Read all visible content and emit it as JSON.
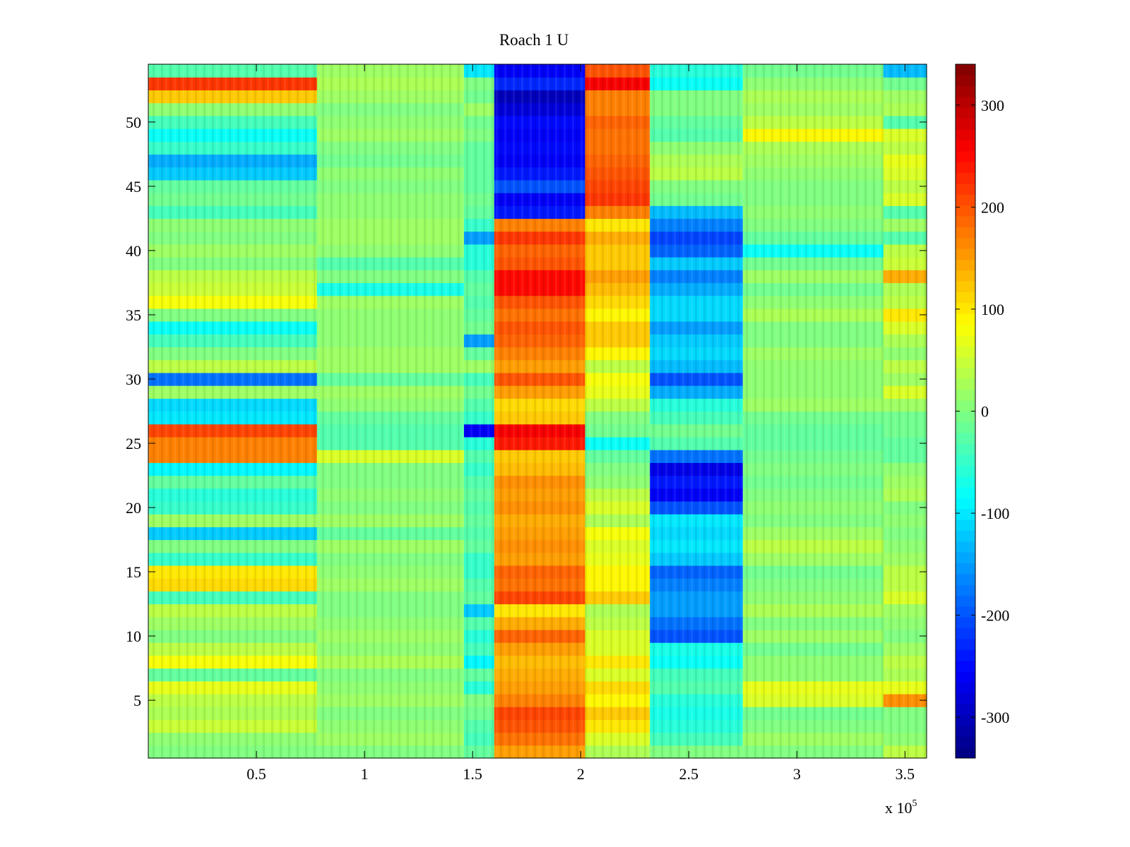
{
  "chart_data": {
    "type": "heatmap",
    "title": "Roach 1 U",
    "xlabel": "",
    "ylabel": "",
    "x_exponent_label": "x 10",
    "x_exponent_power": "5",
    "xlim": [
      0,
      360000
    ],
    "ylim": [
      0.5,
      54.5
    ],
    "x_ticks": [
      0.5,
      1,
      1.5,
      2,
      2.5,
      3,
      3.5
    ],
    "x_tick_labels": [
      "0.5",
      "1",
      "1.5",
      "2",
      "2.5",
      "3",
      "3.5"
    ],
    "y_ticks": [
      5,
      10,
      15,
      20,
      25,
      30,
      35,
      40,
      45,
      50
    ],
    "y_tick_labels": [
      "5",
      "10",
      "15",
      "20",
      "25",
      "30",
      "35",
      "40",
      "45",
      "50"
    ],
    "colormap": "jet",
    "clim": [
      -340,
      340
    ],
    "colorbar_ticks": [
      300,
      200,
      100,
      0,
      -100,
      -200,
      -300
    ],
    "colorbar_tick_labels": [
      "300",
      "200",
      "100",
      "0",
      "-100",
      "-200",
      "-300"
    ],
    "rows": 54,
    "segments_x_1e5": [
      0,
      0.78,
      1.46,
      1.6,
      2.02,
      2.32,
      2.75,
      3.4,
      3.6
    ],
    "grid_values": [
      [
        0,
        0,
        -20,
        150,
        30,
        0,
        0,
        40
      ],
      [
        10,
        20,
        -40,
        180,
        60,
        -40,
        20,
        10
      ],
      [
        50,
        10,
        -30,
        200,
        100,
        -60,
        0,
        0
      ],
      [
        30,
        0,
        -10,
        210,
        120,
        -70,
        -10,
        0
      ],
      [
        40,
        20,
        0,
        170,
        90,
        -60,
        60,
        160
      ],
      [
        70,
        10,
        -60,
        150,
        110,
        -30,
        70,
        70
      ],
      [
        -20,
        0,
        -20,
        140,
        60,
        -40,
        10,
        30
      ],
      [
        80,
        30,
        -90,
        130,
        100,
        -80,
        10,
        40
      ],
      [
        40,
        10,
        -40,
        150,
        60,
        -70,
        -10,
        20
      ],
      [
        0,
        20,
        -60,
        190,
        60,
        -200,
        20,
        0
      ],
      [
        20,
        10,
        -30,
        140,
        40,
        -180,
        0,
        10
      ],
      [
        40,
        0,
        -120,
        100,
        30,
        -150,
        30,
        20
      ],
      [
        -40,
        0,
        -20,
        210,
        120,
        -150,
        10,
        60
      ],
      [
        110,
        20,
        -30,
        180,
        90,
        -170,
        0,
        40
      ],
      [
        100,
        10,
        -50,
        190,
        90,
        -190,
        -10,
        40
      ],
      [
        -50,
        0,
        -50,
        150,
        70,
        -120,
        20,
        20
      ],
      [
        0,
        20,
        -20,
        160,
        60,
        -100,
        40,
        10
      ],
      [
        -120,
        -20,
        -30,
        150,
        80,
        -110,
        20,
        0
      ],
      [
        20,
        20,
        -20,
        140,
        30,
        -100,
        0,
        10
      ],
      [
        -50,
        0,
        -30,
        160,
        60,
        -200,
        10,
        0
      ],
      [
        -60,
        10,
        -20,
        150,
        40,
        -260,
        0,
        30
      ],
      [
        -20,
        0,
        -30,
        160,
        10,
        -240,
        -10,
        20
      ],
      [
        -90,
        0,
        -50,
        130,
        0,
        -270,
        0,
        10
      ],
      [
        170,
        60,
        -30,
        120,
        -20,
        -180,
        -10,
        -20
      ],
      [
        170,
        -30,
        -60,
        240,
        -80,
        -30,
        -20,
        -20
      ],
      [
        210,
        -30,
        -260,
        260,
        -10,
        -10,
        -20,
        -10
      ],
      [
        -100,
        -20,
        -50,
        120,
        0,
        -40,
        -10,
        -10
      ],
      [
        -110,
        10,
        -30,
        110,
        40,
        -60,
        20,
        20
      ],
      [
        20,
        20,
        -10,
        150,
        70,
        -140,
        10,
        60
      ],
      [
        -180,
        -20,
        -40,
        200,
        80,
        -200,
        10,
        20
      ],
      [
        40,
        20,
        20,
        150,
        40,
        -130,
        10,
        40
      ],
      [
        0,
        20,
        -20,
        170,
        90,
        -110,
        20,
        10
      ],
      [
        -40,
        10,
        -150,
        190,
        120,
        -120,
        0,
        30
      ],
      [
        -80,
        10,
        -10,
        200,
        120,
        -150,
        0,
        60
      ],
      [
        0,
        10,
        -20,
        180,
        90,
        -110,
        30,
        100
      ],
      [
        80,
        20,
        -30,
        200,
        110,
        -110,
        10,
        40
      ],
      [
        50,
        -70,
        -20,
        250,
        130,
        -140,
        -10,
        30
      ],
      [
        40,
        0,
        -30,
        250,
        150,
        -170,
        20,
        140
      ],
      [
        0,
        -30,
        -60,
        200,
        120,
        -120,
        -10,
        50
      ],
      [
        20,
        10,
        -60,
        190,
        120,
        -190,
        -80,
        40
      ],
      [
        0,
        20,
        -150,
        220,
        140,
        -210,
        -20,
        -30
      ],
      [
        10,
        20,
        -50,
        170,
        100,
        -170,
        0,
        20
      ],
      [
        -40,
        10,
        -20,
        -240,
        170,
        -130,
        10,
        -30
      ],
      [
        -10,
        10,
        -10,
        -260,
        220,
        -10,
        0,
        60
      ],
      [
        -20,
        0,
        -20,
        -200,
        210,
        0,
        0,
        40
      ],
      [
        -120,
        10,
        -20,
        -240,
        200,
        40,
        10,
        60
      ],
      [
        -140,
        -10,
        -20,
        -260,
        190,
        30,
        20,
        70
      ],
      [
        -50,
        0,
        -20,
        -250,
        180,
        10,
        30,
        40
      ],
      [
        -80,
        20,
        0,
        -260,
        180,
        -30,
        90,
        60
      ],
      [
        -40,
        10,
        -10,
        -250,
        190,
        -20,
        40,
        -30
      ],
      [
        10,
        0,
        20,
        -280,
        170,
        0,
        20,
        30
      ],
      [
        120,
        20,
        -10,
        -300,
        170,
        0,
        30,
        20
      ],
      [
        220,
        30,
        0,
        -230,
        260,
        -80,
        10,
        -10
      ],
      [
        -30,
        20,
        -100,
        -260,
        200,
        -60,
        -10,
        -130
      ]
    ]
  }
}
